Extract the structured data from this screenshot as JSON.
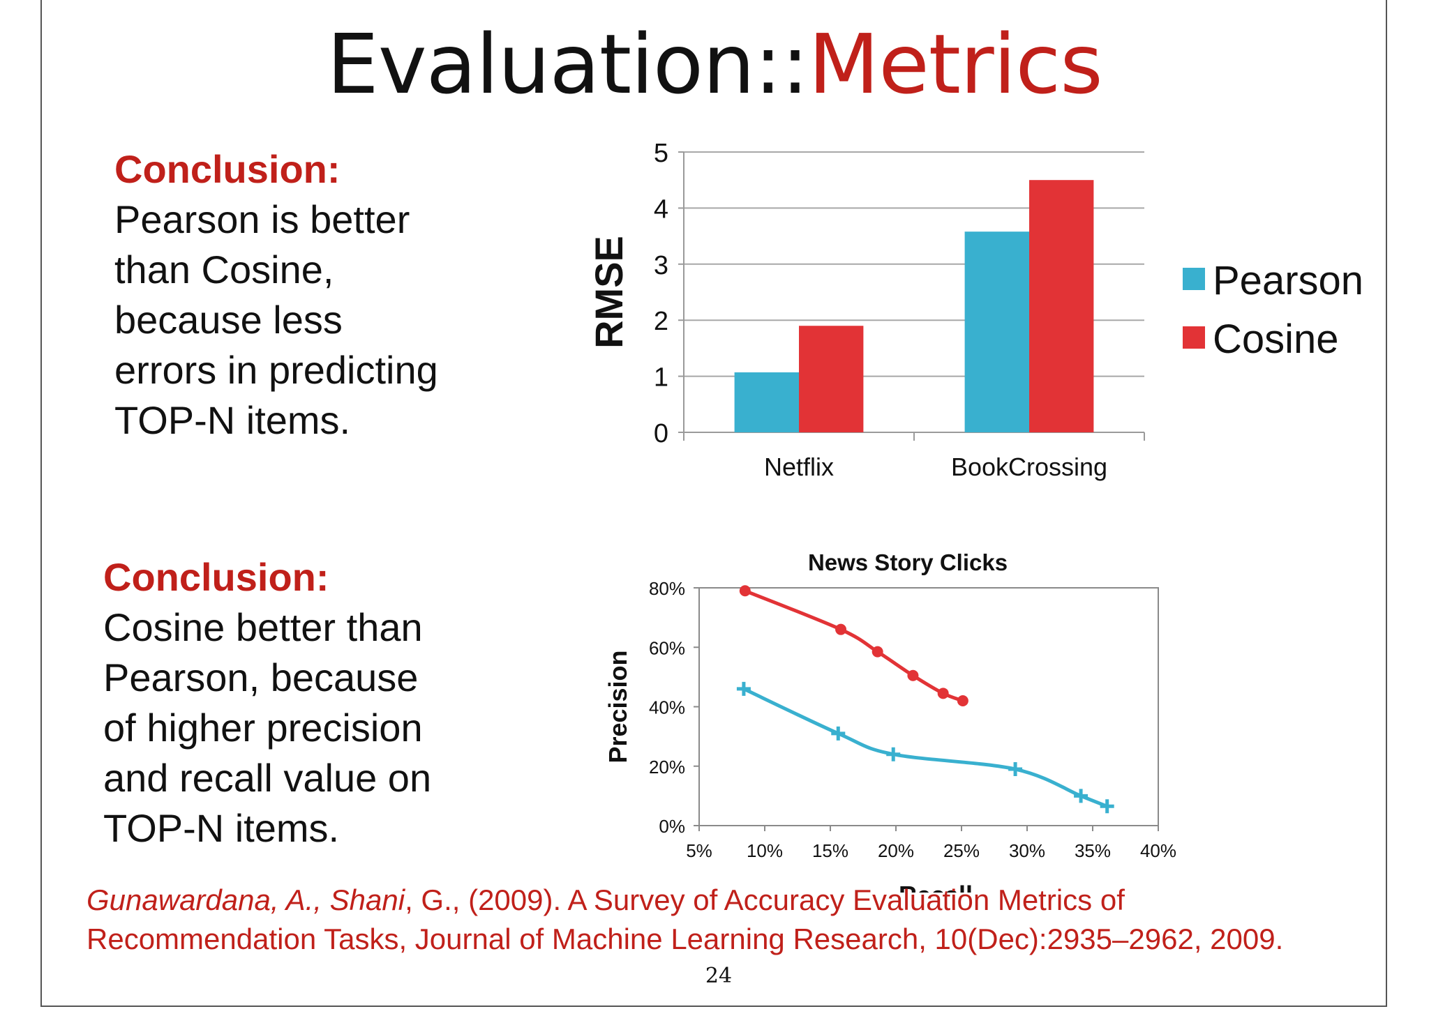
{
  "slide": {
    "title_part1": "Evaluation::",
    "title_part2": "Metrics",
    "accent_color": "#c0201a",
    "conclusion1": {
      "heading": "Conclusion:",
      "body": "Pearson is better\nthan Cosine,\nbecause less\nerrors in predicting\nTOP-N items."
    },
    "conclusion2": {
      "heading": "Conclusion:",
      "body": "Cosine better than\nPearson, because\nof higher precision\nand recall value on\nTOP-N items."
    },
    "citation": {
      "authors_italic1": "Gunawardana, A., Shani",
      "rest1": ", G., (2009). A Survey of Accuracy Evaluation Metrics of Recommendation Tasks, Journal of Machine Learning Research, 10(Dec):2935–2962, 2009."
    },
    "page_number": "24"
  },
  "chart_data": [
    {
      "type": "bar",
      "title": "",
      "xlabel": "",
      "ylabel": "RMSE",
      "categories": [
        "Netflix",
        "BookCrossing"
      ],
      "series": [
        {
          "name": "Pearson",
          "values": [
            1.07,
            3.58
          ],
          "color": "#39b0cf"
        },
        {
          "name": "Cosine",
          "values": [
            1.9,
            4.5
          ],
          "color": "#e23336"
        }
      ],
      "ylim": [
        0,
        5
      ],
      "yticks": [
        "0",
        "1",
        "2",
        "3",
        "4",
        "5"
      ],
      "grid": true,
      "legend": "right"
    },
    {
      "type": "line",
      "title": "News Story Clicks",
      "xlabel": "Recall",
      "ylabel": "Precision",
      "xlim": [
        0.05,
        0.4
      ],
      "ylim": [
        0,
        0.8
      ],
      "xticks": [
        "5%",
        "10%",
        "15%",
        "20%",
        "25%",
        "30%",
        "35%",
        "40%"
      ],
      "yticks": [
        "0%",
        "20%",
        "40%",
        "60%",
        "80%"
      ],
      "series": [
        {
          "color": "#e23336",
          "marker": "circle",
          "x": [
            0.085,
            0.158,
            0.186,
            0.213,
            0.236,
            0.251
          ],
          "y": [
            0.79,
            0.66,
            0.585,
            0.505,
            0.445,
            0.42
          ]
        },
        {
          "color": "#39b0cf",
          "marker": "plus",
          "x": [
            0.084,
            0.156,
            0.198,
            0.291,
            0.341,
            0.361
          ],
          "y": [
            0.46,
            0.31,
            0.24,
            0.19,
            0.1,
            0.065
          ]
        }
      ],
      "grid": false,
      "legend": "none"
    }
  ]
}
